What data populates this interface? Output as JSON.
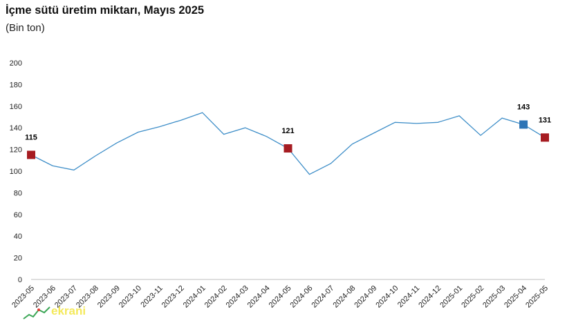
{
  "chart_data": {
    "type": "line",
    "title": "İçme sütü üretim miktarı, Mayıs 2025",
    "subtitle": "(Bin ton)",
    "xlabel": "",
    "ylabel": "",
    "ylim": [
      0,
      200
    ],
    "yticks": [
      0,
      20,
      40,
      60,
      80,
      100,
      120,
      140,
      160,
      180,
      200
    ],
    "categories": [
      "2023-05",
      "2023-06",
      "2023-07",
      "2023-08",
      "2023-09",
      "2023-10",
      "2023-11",
      "2023-12",
      "2024-01",
      "2024-02",
      "2024-03",
      "2024-04",
      "2024-05",
      "2024-06",
      "2024-07",
      "2024-08",
      "2024-09",
      "2024-10",
      "2024-11",
      "2024-12",
      "2025-01",
      "2025-02",
      "2025-03",
      "2025-04",
      "2025-05"
    ],
    "series": [
      {
        "values": [
          115,
          105,
          101,
          114,
          126,
          136,
          141,
          147,
          154,
          134,
          140,
          132,
          121,
          97,
          107,
          125,
          135,
          145,
          144,
          145,
          151,
          133,
          149,
          143,
          131
        ],
        "color": "#3e8ec8"
      }
    ],
    "highlights": [
      {
        "index": 0,
        "label": "115",
        "color": "#a61c22"
      },
      {
        "index": 12,
        "label": "121",
        "color": "#a61c22"
      },
      {
        "index": 23,
        "label": "143",
        "color": "#2e75b6"
      },
      {
        "index": 24,
        "label": "131",
        "color": "#a61c22"
      }
    ],
    "grid": false,
    "legend": "none"
  },
  "watermark": {
    "text": "ekrani"
  }
}
